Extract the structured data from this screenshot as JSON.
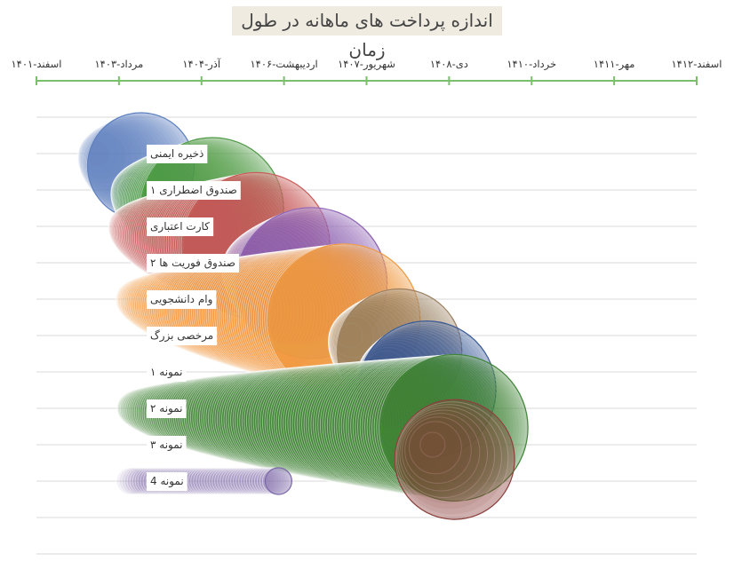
{
  "chart_data": {
    "type": "bubble-timeline",
    "title": "اندازه پرداخت های ماهانه در طول زمان",
    "x_ticks": [
      "۱۴۰۱-اسفند",
      "۱۴۰۳-مرداد",
      "۱۴۰۴-آذر",
      "۱۴۰۶-اردیبهشت",
      "۱۴۰۷-شهریور",
      "۱۴۰۸-دی",
      "۱۴۱۰-خرداد",
      "۱۴۱۱-مهر",
      "۱۴۱۲-اسفند"
    ],
    "x_range_months": [
      0,
      120
    ],
    "grid": true,
    "series": [
      {
        "name": "ذخیره ایمنی",
        "color": "#5b7fbf",
        "start_month": 11,
        "end_month": 19,
        "max_size": 120
      },
      {
        "name": "صندوق اضطراری ۱",
        "color": "#4f9a46",
        "start_month": 17,
        "end_month": 32,
        "max_size": 160
      },
      {
        "name": "کارت اعتباری",
        "color": "#c95c58",
        "start_month": 16,
        "end_month": 40,
        "max_size": 165
      },
      {
        "name": "صندوق فوریت ها ۲",
        "color": "#8e62b5",
        "start_month": 38,
        "end_month": 50,
        "max_size": 170
      },
      {
        "name": "وام دانشجویی",
        "color": "#ef9a43",
        "start_month": 17,
        "end_month": 56,
        "max_size": 170
      },
      {
        "name": "مرخصی بزرگ",
        "color": "#9b8060",
        "start_month": 57,
        "end_month": 66,
        "max_size": 140
      },
      {
        "name": "نمونه ۱",
        "color": "#3a5a96",
        "start_month": 63,
        "end_month": 71,
        "max_size": 155
      },
      {
        "name": "نمونه ۲",
        "color": "#3f8536",
        "start_month": 17,
        "end_month": 76,
        "max_size": 165
      },
      {
        "name": "نمونه ۳",
        "color": "#8a3d3a",
        "start_month": 72,
        "end_month": 76,
        "max_size": 135
      },
      {
        "name": "نمونه 4",
        "color": "#7b67a8",
        "start_month": 17,
        "end_month": 44,
        "max_size": 30
      }
    ]
  }
}
